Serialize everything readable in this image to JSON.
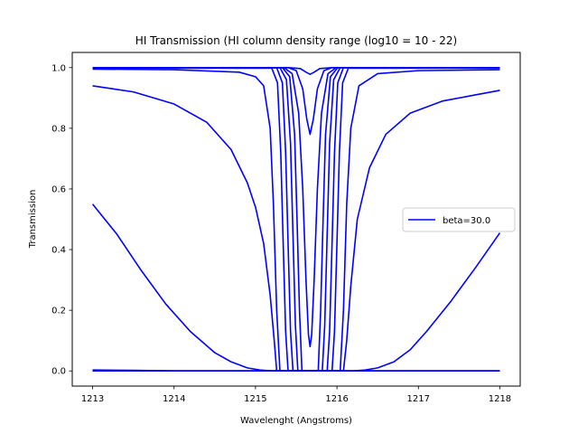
{
  "chart_data": {
    "type": "line",
    "title": "HI Transmission (HI column density range (log10 = 10 - 22)",
    "xlabel": "Wavelenght (Angstroms)",
    "ylabel": "Transmission",
    "xlim": [
      1212.75,
      1218.25
    ],
    "ylim": [
      -0.05,
      1.05
    ],
    "xticks": [
      1213,
      1214,
      1215,
      1216,
      1217,
      1218
    ],
    "yticks": [
      0.0,
      0.2,
      0.4,
      0.6,
      0.8,
      1.0
    ],
    "xtick_labels": [
      "1213",
      "1214",
      "1215",
      "1216",
      "1217",
      "1218"
    ],
    "ytick_labels": [
      "0.0",
      "0.2",
      "0.4",
      "0.6",
      "0.8",
      "1.0"
    ],
    "grid": false,
    "legend": {
      "position": "center-right",
      "entries": [
        {
          "label": "beta=30.0",
          "color": "#0000ff"
        }
      ]
    },
    "line_color": "#0000ff",
    "line_center": 1215.67,
    "series": [
      {
        "log10_column_density": 10,
        "x": [
          1213,
          1215.4,
          1215.55,
          1215.62,
          1215.67,
          1215.72,
          1215.79,
          1215.94,
          1218
        ],
        "y": [
          1.0,
          1.0,
          0.997,
          0.985,
          0.978,
          0.985,
          0.997,
          1.0,
          1.0
        ]
      },
      {
        "log10_column_density": 11,
        "x": [
          1213,
          1215.4,
          1215.5,
          1215.58,
          1215.63,
          1215.67,
          1215.71,
          1215.76,
          1215.84,
          1215.94,
          1218
        ],
        "y": [
          1.0,
          1.0,
          0.99,
          0.93,
          0.83,
          0.78,
          0.83,
          0.93,
          0.99,
          1.0,
          1.0
        ]
      },
      {
        "log10_column_density": 12,
        "x": [
          1213,
          1215.35,
          1215.45,
          1215.53,
          1215.58,
          1215.62,
          1215.65,
          1215.67,
          1215.69,
          1215.72,
          1215.76,
          1215.81,
          1215.89,
          1215.99,
          1218
        ],
        "y": [
          1.0,
          1.0,
          0.98,
          0.85,
          0.6,
          0.3,
          0.12,
          0.08,
          0.12,
          0.3,
          0.6,
          0.85,
          0.98,
          1.0,
          1.0
        ]
      },
      {
        "log10_column_density": 13,
        "x": [
          1213,
          1215.33,
          1215.42,
          1215.48,
          1215.51,
          1215.54,
          1215.57,
          1215.77,
          1215.8,
          1215.83,
          1215.86,
          1215.92,
          1216.01,
          1218
        ],
        "y": [
          1.0,
          1.0,
          0.97,
          0.78,
          0.5,
          0.2,
          0.0,
          0.0,
          0.2,
          0.5,
          0.78,
          0.97,
          1.0,
          1.0
        ]
      },
      {
        "log10_column_density": 14,
        "x": [
          1213,
          1215.3,
          1215.38,
          1215.43,
          1215.46,
          1215.49,
          1215.52,
          1215.82,
          1215.85,
          1215.88,
          1215.91,
          1215.96,
          1216.04,
          1218
        ],
        "y": [
          1.0,
          1.0,
          0.96,
          0.75,
          0.45,
          0.15,
          0.0,
          0.0,
          0.15,
          0.45,
          0.75,
          0.96,
          1.0,
          1.0
        ]
      },
      {
        "log10_column_density": 15,
        "x": [
          1213,
          1215.26,
          1215.33,
          1215.37,
          1215.4,
          1215.43,
          1215.46,
          1215.88,
          1215.91,
          1215.94,
          1215.97,
          1216.01,
          1216.08,
          1218
        ],
        "y": [
          1.0,
          1.0,
          0.95,
          0.72,
          0.42,
          0.13,
          0.0,
          0.0,
          0.13,
          0.42,
          0.72,
          0.95,
          1.0,
          1.0
        ]
      },
      {
        "log10_column_density": 16,
        "x": [
          1213,
          1215.2,
          1215.27,
          1215.31,
          1215.34,
          1215.37,
          1215.4,
          1215.94,
          1215.97,
          1216.0,
          1216.03,
          1216.07,
          1216.14,
          1218
        ],
        "y": [
          0.998,
          0.998,
          0.95,
          0.72,
          0.42,
          0.13,
          0.0,
          0.0,
          0.13,
          0.42,
          0.72,
          0.95,
          0.998,
          0.998
        ]
      },
      {
        "log10_column_density": 17,
        "x": [
          1213,
          1214.0,
          1214.8,
          1215.0,
          1215.1,
          1215.18,
          1215.22,
          1215.26,
          1215.3,
          1216.04,
          1216.08,
          1216.12,
          1216.17,
          1216.27,
          1216.5,
          1217.0,
          1218
        ],
        "y": [
          0.995,
          0.993,
          0.985,
          0.97,
          0.94,
          0.8,
          0.55,
          0.2,
          0.0,
          0.0,
          0.2,
          0.55,
          0.8,
          0.94,
          0.98,
          0.99,
          0.993
        ]
      },
      {
        "log10_column_density": 18,
        "x": [
          1213,
          1213.5,
          1214.0,
          1214.4,
          1214.7,
          1214.9,
          1215.0,
          1215.1,
          1215.18,
          1215.23,
          1215.26,
          1216.08,
          1216.12,
          1216.17,
          1216.25,
          1216.4,
          1216.6,
          1216.9,
          1217.3,
          1217.7,
          1218
        ],
        "y": [
          0.94,
          0.92,
          0.88,
          0.82,
          0.73,
          0.62,
          0.54,
          0.42,
          0.25,
          0.1,
          0.0,
          0.0,
          0.1,
          0.28,
          0.5,
          0.67,
          0.78,
          0.85,
          0.89,
          0.91,
          0.925
        ]
      },
      {
        "log10_column_density": 19,
        "x": [
          1213,
          1213.3,
          1213.6,
          1213.9,
          1214.2,
          1214.5,
          1214.7,
          1214.9,
          1215.05,
          1215.2,
          1216.2,
          1216.35,
          1216.5,
          1216.7,
          1216.9,
          1217.1,
          1217.4,
          1217.7,
          1218
        ],
        "y": [
          0.55,
          0.45,
          0.33,
          0.22,
          0.13,
          0.06,
          0.03,
          0.01,
          0.003,
          0.0,
          0.0,
          0.003,
          0.01,
          0.03,
          0.07,
          0.13,
          0.23,
          0.34,
          0.455
        ]
      },
      {
        "log10_column_density": 20,
        "x": [
          1213,
          1213.5,
          1214.0,
          1215.67,
          1217.0,
          1218
        ],
        "y": [
          0.003,
          0.002,
          0.0,
          0.0,
          0.0,
          0.0
        ]
      },
      {
        "log10_column_density": 21,
        "x": [
          1213,
          1218
        ],
        "y": [
          0.0,
          0.0
        ]
      },
      {
        "log10_column_density": 22,
        "x": [
          1213,
          1218
        ],
        "y": [
          0.0,
          0.0
        ]
      }
    ]
  }
}
